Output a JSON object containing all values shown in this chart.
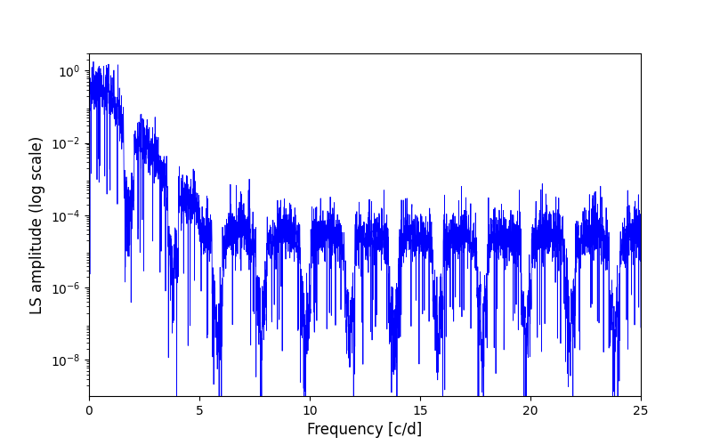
{
  "title": "",
  "xlabel": "Frequency [c/d]",
  "ylabel": "LS amplitude (log scale)",
  "line_color": "#0000ff",
  "line_width": 0.6,
  "xlim": [
    0,
    25
  ],
  "ylim": [
    1e-09,
    3.0
  ],
  "yscale": "log",
  "freq_max": 25.0,
  "n_points": 4000,
  "figsize": [
    8.0,
    5.0
  ],
  "dpi": 100,
  "background_color": "#ffffff",
  "yticks": [
    1e-08,
    1e-06,
    0.0001,
    0.01,
    1.0
  ],
  "xticks": [
    0,
    5,
    10,
    15,
    20,
    25
  ]
}
